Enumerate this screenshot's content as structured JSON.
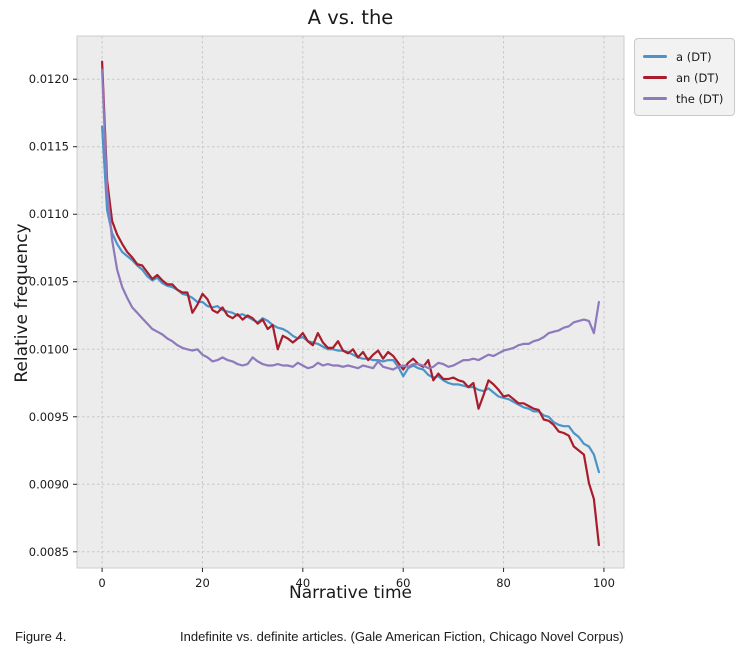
{
  "caption": {
    "label": "Figure 4.",
    "text": "Indefinite vs. definite articles. (Gale American Fiction, Chicago Novel Corpus)"
  },
  "colors": {
    "figure_bg": "#ffffff",
    "plot_bg": "#ececec",
    "grid": "#c8c8c8",
    "spine": "#cccccc",
    "text": "#1a1a1a",
    "series_a": "#4a94c8",
    "series_an": "#a81c2c",
    "series_the": "#8d7abc",
    "legend_bg": "#f2f2f2",
    "legend_border": "#c9c9c9"
  },
  "chart_data": {
    "type": "line",
    "title": "A vs. the",
    "xlabel": "Narrative time",
    "ylabel": "Relative frequency",
    "xlim": [
      -5,
      104
    ],
    "ylim": [
      0.00838,
      0.01232
    ],
    "xticks": [
      0,
      20,
      40,
      60,
      80,
      100
    ],
    "yticks": [
      0.0085,
      0.009,
      0.0095,
      0.01,
      0.0105,
      0.011,
      0.0115,
      0.012
    ],
    "grid": "dashed",
    "legend_position": "outside upper right",
    "plot_bg": "#ececec",
    "grid_color": "#c8c8c8",
    "spine_color": "#cccccc",
    "x": [
      0,
      1,
      2,
      3,
      4,
      5,
      6,
      7,
      8,
      9,
      10,
      11,
      12,
      13,
      14,
      15,
      16,
      17,
      18,
      19,
      20,
      21,
      22,
      23,
      24,
      25,
      26,
      27,
      28,
      29,
      30,
      31,
      32,
      33,
      34,
      35,
      36,
      37,
      38,
      39,
      40,
      41,
      42,
      43,
      44,
      45,
      46,
      47,
      48,
      49,
      50,
      51,
      52,
      53,
      54,
      55,
      56,
      57,
      58,
      59,
      60,
      61,
      62,
      63,
      64,
      65,
      66,
      67,
      68,
      69,
      70,
      71,
      72,
      73,
      74,
      75,
      76,
      77,
      78,
      79,
      80,
      81,
      82,
      83,
      84,
      85,
      86,
      87,
      88,
      89,
      90,
      91,
      92,
      93,
      94,
      95,
      96,
      97,
      98,
      99
    ],
    "series": [
      {
        "name": "a (DT)",
        "color": "#4a94c8",
        "values": [
          0.01165,
          0.01103,
          0.01086,
          0.01078,
          0.01072,
          0.01069,
          0.01066,
          0.01062,
          0.01059,
          0.01054,
          0.01051,
          0.01053,
          0.01049,
          0.01047,
          0.01046,
          0.01044,
          0.01041,
          0.0104,
          0.01038,
          0.01035,
          0.01035,
          0.01032,
          0.01031,
          0.01032,
          0.01029,
          0.01028,
          0.01027,
          0.01025,
          0.01026,
          0.01024,
          0.01022,
          0.0102,
          0.01023,
          0.01021,
          0.01018,
          0.01016,
          0.01015,
          0.01013,
          0.0101,
          0.01008,
          0.01009,
          0.01006,
          0.01005,
          0.01004,
          0.01002,
          0.01,
          0.01,
          0.00999,
          0.00999,
          0.00998,
          0.00996,
          0.00994,
          0.00993,
          0.00993,
          0.00992,
          0.00992,
          0.00991,
          0.00992,
          0.00992,
          0.00987,
          0.0098,
          0.00986,
          0.00988,
          0.00986,
          0.00985,
          0.00981,
          0.00979,
          0.0098,
          0.00977,
          0.00975,
          0.00974,
          0.00974,
          0.00973,
          0.00972,
          0.00972,
          0.0097,
          0.00969,
          0.00971,
          0.00968,
          0.00965,
          0.00964,
          0.00963,
          0.00961,
          0.00959,
          0.00957,
          0.00956,
          0.00954,
          0.00954,
          0.00951,
          0.0095,
          0.00946,
          0.00944,
          0.00943,
          0.00943,
          0.00938,
          0.00935,
          0.0093,
          0.00928,
          0.00922,
          0.00909
        ]
      },
      {
        "name": "an (DT)",
        "color": "#a81c2c",
        "values": [
          0.01213,
          0.01125,
          0.01095,
          0.01085,
          0.01078,
          0.01072,
          0.01068,
          0.01063,
          0.01062,
          0.01057,
          0.01052,
          0.01055,
          0.01051,
          0.01048,
          0.01048,
          0.01044,
          0.01042,
          0.01042,
          0.01027,
          0.01033,
          0.01041,
          0.01037,
          0.01029,
          0.01027,
          0.01031,
          0.01025,
          0.01023,
          0.01026,
          0.01022,
          0.01025,
          0.01023,
          0.01019,
          0.01022,
          0.01015,
          0.01018,
          0.01,
          0.0101,
          0.01008,
          0.01005,
          0.01008,
          0.01012,
          0.01006,
          0.01003,
          0.01012,
          0.01005,
          0.01001,
          0.01001,
          0.01006,
          0.00999,
          0.00997,
          0.01,
          0.00994,
          0.00998,
          0.00992,
          0.00996,
          0.00999,
          0.00993,
          0.00998,
          0.00995,
          0.0099,
          0.00985,
          0.0099,
          0.00993,
          0.00989,
          0.00987,
          0.00992,
          0.00977,
          0.00982,
          0.00978,
          0.00978,
          0.00979,
          0.00977,
          0.00976,
          0.00972,
          0.00975,
          0.00956,
          0.00966,
          0.00977,
          0.00974,
          0.0097,
          0.00965,
          0.00966,
          0.00963,
          0.0096,
          0.0096,
          0.00958,
          0.00956,
          0.00955,
          0.00948,
          0.00947,
          0.00944,
          0.00939,
          0.00938,
          0.00936,
          0.00928,
          0.00925,
          0.00922,
          0.00901,
          0.00889,
          0.00855
        ]
      },
      {
        "name": "the (DT)",
        "color": "#8d7abc",
        "values": [
          0.01207,
          0.01118,
          0.01081,
          0.01059,
          0.01046,
          0.01038,
          0.01031,
          0.01027,
          0.01023,
          0.01019,
          0.01015,
          0.01013,
          0.01011,
          0.01008,
          0.01006,
          0.01003,
          0.01001,
          0.01,
          0.00999,
          0.01,
          0.00996,
          0.00994,
          0.00991,
          0.00992,
          0.00994,
          0.00992,
          0.00991,
          0.00989,
          0.00988,
          0.00989,
          0.00994,
          0.00991,
          0.00989,
          0.00988,
          0.00988,
          0.00989,
          0.00988,
          0.00988,
          0.00987,
          0.0099,
          0.00988,
          0.00986,
          0.00987,
          0.0099,
          0.00988,
          0.00989,
          0.00988,
          0.00988,
          0.00987,
          0.00988,
          0.00987,
          0.00986,
          0.00988,
          0.00987,
          0.00986,
          0.00991,
          0.00987,
          0.00986,
          0.00985,
          0.00987,
          0.00988,
          0.00987,
          0.00989,
          0.00989,
          0.00988,
          0.00986,
          0.00987,
          0.0099,
          0.00989,
          0.00987,
          0.00988,
          0.0099,
          0.00992,
          0.00992,
          0.00993,
          0.00992,
          0.00994,
          0.00996,
          0.00995,
          0.00997,
          0.00999,
          0.01,
          0.01001,
          0.01003,
          0.01004,
          0.01004,
          0.01006,
          0.01007,
          0.01009,
          0.01012,
          0.01013,
          0.01014,
          0.01016,
          0.01017,
          0.0102,
          0.01021,
          0.01022,
          0.01021,
          0.01012,
          0.01035
        ]
      }
    ]
  }
}
